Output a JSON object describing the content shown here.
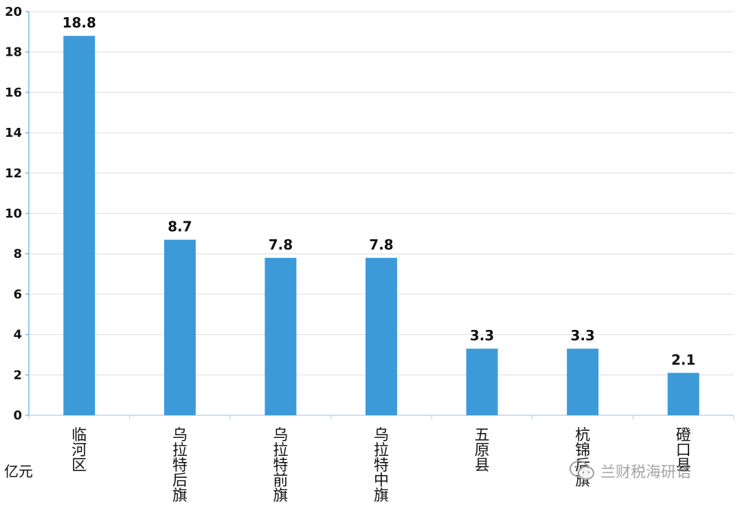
{
  "chart_data": {
    "type": "bar",
    "categories": [
      "临河区",
      "乌拉特后旗",
      "乌拉特前旗",
      "乌拉特中旗",
      "五原县",
      "杭锦后旗",
      "磴口县"
    ],
    "values": [
      18.8,
      8.7,
      7.8,
      7.8,
      3.3,
      3.3,
      2.1
    ],
    "value_labels": [
      "18.8",
      "8.7",
      "7.8",
      "7.8",
      "3.3",
      "3.3",
      "2.1"
    ],
    "ylabel": "亿元",
    "ylim": [
      0,
      20
    ],
    "yticks": [
      "0",
      "2",
      "4",
      "6",
      "8",
      "10",
      "12",
      "14",
      "16",
      "18",
      "20"
    ],
    "grid": true,
    "bar_color": "#3d9ad9"
  },
  "watermark": {
    "text": "兰财税海研语",
    "icon": "wechat-icon"
  }
}
